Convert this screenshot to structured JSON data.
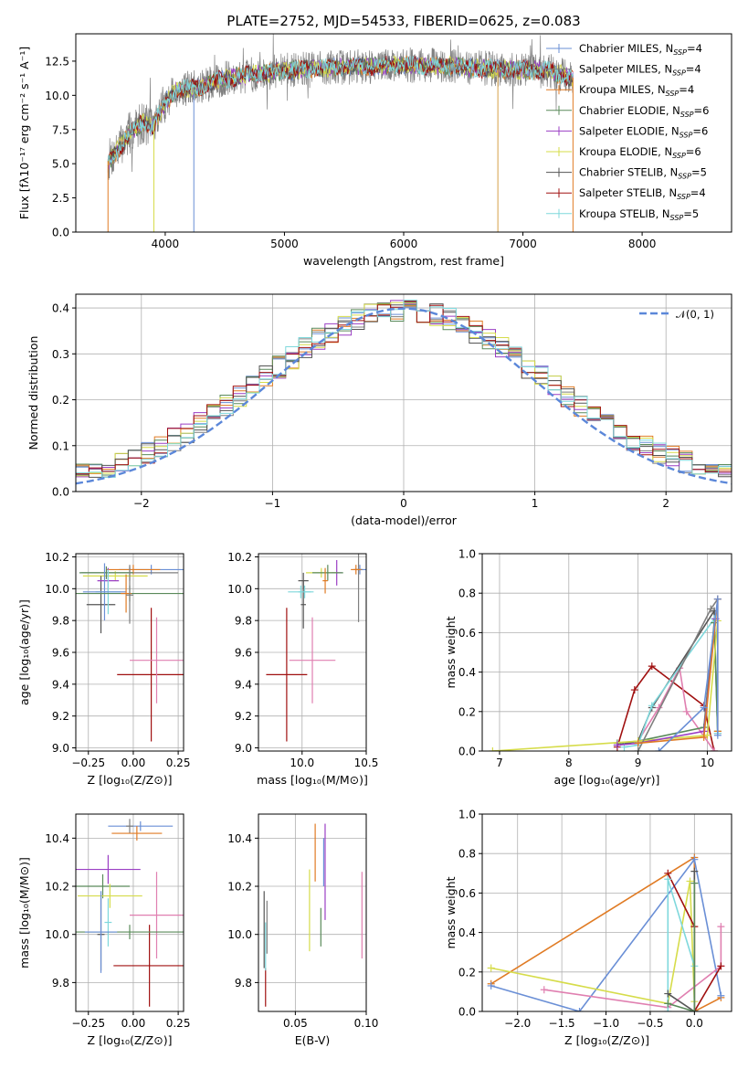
{
  "colors": {
    "Chabrier MILES": "#6a8fd6",
    "Salpeter MILES": "#7f7f7f",
    "Kroupa MILES": "#e07b24",
    "Chabrier ELODIE": "#5a8a5a",
    "Salpeter ELODIE": "#9b3fc4",
    "Kroupa ELODIE": "#d6dc4a",
    "Chabrier STELIB": "#555555",
    "Salpeter STELIB": "#a01010",
    "Kroupa STELIB": "#7fd8dc",
    "extra pink": "#e07fb0",
    "normal curve": "#5b87d9"
  },
  "chart_data": [
    {
      "id": "spectrum",
      "type": "line",
      "title": "PLATE=2752, MJD=54533, FIBERID=0625, z=0.083",
      "xlabel": "wavelength [Angstrom, rest frame]",
      "ylabel": "Flux [fλ10⁻¹⁷ erg cm⁻² s⁻¹ A⁻¹]",
      "xlim": [
        3250,
        8750
      ],
      "ylim": [
        0,
        14.5
      ],
      "xticks": [
        "4000",
        "5000",
        "6000",
        "7000",
        "8000"
      ],
      "yticks": [
        "0.0",
        "2.5",
        "5.0",
        "7.5",
        "10.0",
        "12.5"
      ],
      "continuum": {
        "x": [
          3520,
          3600,
          3700,
          3800,
          3900,
          4000,
          4100,
          4300,
          4500,
          4800,
          5000,
          5300,
          5600,
          6000,
          6300,
          6600,
          6900,
          7200,
          7420
        ],
        "y": [
          5.2,
          6.0,
          7.2,
          8.0,
          7.8,
          9.5,
          10.4,
          10.6,
          11.2,
          11.6,
          11.8,
          12.0,
          12.1,
          12.2,
          12.2,
          12.0,
          11.9,
          11.8,
          11.3
        ]
      },
      "legend": [
        {
          "label": "Chabrier MILES, N",
          "sub": "SSP",
          "tail": "=4"
        },
        {
          "label": "Salpeter MILES, N",
          "sub": "SSP",
          "tail": "=4"
        },
        {
          "label": "Kroupa MILES, N",
          "sub": "SSP",
          "tail": "=4"
        },
        {
          "label": "Chabrier ELODIE, N",
          "sub": "SSP",
          "tail": "=6"
        },
        {
          "label": "Salpeter ELODIE, N",
          "sub": "SSP",
          "tail": "=6"
        },
        {
          "label": "Kroupa ELODIE, N",
          "sub": "SSP",
          "tail": "=6"
        },
        {
          "label": "Chabrier STELIB, N",
          "sub": "SSP",
          "tail": "=5"
        },
        {
          "label": "Salpeter STELIB, N",
          "sub": "SSP",
          "tail": "=4"
        },
        {
          "label": "Kroupa STELIB, N",
          "sub": "SSP",
          "tail": "=5"
        }
      ],
      "legend_placement": "upper-right",
      "grid": false
    },
    {
      "id": "residuals",
      "type": "histogram",
      "xlabel": "(data-model)/error",
      "ylabel": "Normed distribution",
      "xlim": [
        -2.5,
        2.5
      ],
      "ylim": [
        0,
        0.43
      ],
      "xticks": [
        "−2",
        "−1",
        "0",
        "1",
        "2"
      ],
      "yticks": [
        "0.0",
        "0.1",
        "0.2",
        "0.3",
        "0.4"
      ],
      "bin_width": 0.1,
      "legend": "𝒩(0, 1)",
      "legend_placement": "upper-right",
      "grid": true
    },
    {
      "id": "age-vs-Z",
      "type": "errorbar",
      "xlabel": "Z [log₁₀(Z/Z⊙)]",
      "ylabel": "age  [log₁₀(age/yr)]",
      "xlim": [
        -0.32,
        0.28
      ],
      "ylim": [
        8.98,
        10.22
      ],
      "xticks": [
        "−0.25",
        "0.00",
        "0.25"
      ],
      "yticks": [
        "9.0",
        "9.2",
        "9.4",
        "9.6",
        "9.8",
        "10.0",
        "10.2"
      ],
      "grid": true,
      "points": [
        {
          "c": "#a01010",
          "x": 0.1,
          "xe": 0.19,
          "y": 9.46,
          "ye": 0.42
        },
        {
          "c": "#e07fb0",
          "x": 0.13,
          "xe": 0.15,
          "y": 9.55,
          "ye": 0.27
        },
        {
          "c": "#6a8fd6",
          "x": 0.1,
          "xe": 0.18,
          "y": 10.12,
          "ye": 0.03
        },
        {
          "c": "#7f7f7f",
          "x": -0.02,
          "xe": 0.27,
          "y": 10.1,
          "ye": 0.05
        },
        {
          "c": "#e07b24",
          "x": 0.0,
          "xe": 0.15,
          "y": 10.12,
          "ye": 0.03
        },
        {
          "c": "#d6dc4a",
          "x": -0.1,
          "xe": 0.18,
          "y": 10.08,
          "ye": 0.03
        },
        {
          "c": "#5a8a5a",
          "x": -0.15,
          "xe": 0.15,
          "y": 10.1,
          "ye": 0.04
        },
        {
          "c": "#555555",
          "x": -0.18,
          "xe": 0.08,
          "y": 9.9,
          "ye": 0.18
        },
        {
          "c": "#9b3fc4",
          "x": -0.14,
          "xe": 0.06,
          "y": 10.05,
          "ye": 0.08
        },
        {
          "c": "#7fd8dc",
          "x": -0.14,
          "xe": 0.07,
          "y": 9.98,
          "ye": 0.14
        },
        {
          "c": "#6a8fd6",
          "x": -0.16,
          "xe": 0.12,
          "y": 9.98,
          "ye": 0.18
        },
        {
          "c": "#5a8a5a",
          "x": -0.02,
          "xe": 0.3,
          "y": 9.97,
          "ye": 0.05
        },
        {
          "c": "#e07b24",
          "x": -0.04,
          "xe": 0.03,
          "y": 9.97,
          "ye": 0.12
        },
        {
          "c": "#7f7f7f",
          "x": -0.02,
          "xe": 0.02,
          "y": 9.96,
          "ye": 0.18
        }
      ]
    },
    {
      "id": "age-vs-mass",
      "type": "errorbar",
      "xlabel": "mass [log₁₀(M/M⊙)]",
      "ylabel": "",
      "xlim": [
        9.66,
        10.5
      ],
      "ylim": [
        8.98,
        10.22
      ],
      "xticks": [
        "10.0",
        "10.5"
      ],
      "yticks": [
        "9.0",
        "9.2",
        "9.4",
        "9.6",
        "9.8",
        "10.0",
        "10.2"
      ],
      "grid": true,
      "points": [
        {
          "c": "#a01010",
          "x": 9.88,
          "xe": 0.16,
          "y": 9.46,
          "ye": 0.42
        },
        {
          "c": "#e07fb0",
          "x": 10.08,
          "xe": 0.18,
          "y": 9.55,
          "ye": 0.27
        },
        {
          "c": "#6a8fd6",
          "x": 10.45,
          "xe": 0.05,
          "y": 10.12,
          "ye": 0.03
        },
        {
          "c": "#7f7f7f",
          "x": 10.44,
          "xe": 0.03,
          "y": 10.12,
          "ye": 0.33
        },
        {
          "c": "#e07b24",
          "x": 10.42,
          "xe": 0.04,
          "y": 10.12,
          "ye": 0.03
        },
        {
          "c": "#9b3fc4",
          "x": 10.27,
          "xe": 0.04,
          "y": 10.1,
          "ye": 0.08
        },
        {
          "c": "#d6dc4a",
          "x": 10.15,
          "xe": 0.12,
          "y": 10.1,
          "ye": 0.03
        },
        {
          "c": "#5a8a5a",
          "x": 10.2,
          "xe": 0.12,
          "y": 10.1,
          "ye": 0.05
        },
        {
          "c": "#555555",
          "x": 10.01,
          "xe": 0.04,
          "y": 10.05,
          "ye": 0.05
        },
        {
          "c": "#7fd8dc",
          "x": 10.02,
          "xe": 0.05,
          "y": 9.98,
          "ye": 0.04
        },
        {
          "c": "#555555",
          "x": 10.01,
          "xe": 0.02,
          "y": 9.9,
          "ye": 0.15
        },
        {
          "c": "#7fd8dc",
          "x": 9.99,
          "xe": 0.1,
          "y": 9.98,
          "ye": 0.04
        },
        {
          "c": "#e07b24",
          "x": 10.18,
          "xe": 0.02,
          "y": 10.05,
          "ye": 0.08
        }
      ]
    },
    {
      "id": "weight-vs-age",
      "type": "line",
      "xlabel": "age  [log₁₀(age/yr)]",
      "ylabel": "mass weight",
      "xlim": [
        6.75,
        10.35
      ],
      "ylim": [
        0,
        1.0
      ],
      "xticks": [
        "7",
        "8",
        "9",
        "10"
      ],
      "yticks": [
        "0.0",
        "0.2",
        "0.4",
        "0.6",
        "0.8",
        "1.0"
      ],
      "grid": true,
      "series": [
        {
          "c": "#a01010",
          "x": [
            8.7,
            8.95,
            9.2,
            9.95,
            10.1
          ],
          "y": [
            0.02,
            0.31,
            0.43,
            0.23,
            0.0
          ]
        },
        {
          "c": "#e07fb0",
          "x": [
            9.0,
            9.3,
            9.6,
            9.7,
            10.1
          ],
          "y": [
            0.05,
            0.22,
            0.42,
            0.2,
            0.0
          ]
        },
        {
          "c": "#555555",
          "x": [
            8.7,
            9.0,
            9.2,
            10.1,
            10.15
          ],
          "y": [
            0.03,
            0.05,
            0.22,
            0.71,
            0.09
          ]
        },
        {
          "c": "#7fd8dc",
          "x": [
            8.8,
            9.0,
            9.2,
            10.1,
            10.15
          ],
          "y": [
            0.02,
            0.03,
            0.23,
            0.67,
            0.09
          ]
        },
        {
          "c": "#5a8a5a",
          "x": [
            8.7,
            9.0,
            9.95,
            10.1,
            10.15
          ],
          "y": [
            0.04,
            0.05,
            0.12,
            0.65,
            0.1
          ]
        },
        {
          "c": "#d6dc4a",
          "x": [
            6.9,
            9.0,
            10.0,
            10.15
          ],
          "y": [
            0.0,
            0.05,
            0.08,
            0.66
          ]
        },
        {
          "c": "#9b3fc4",
          "x": [
            8.7,
            9.0,
            9.95,
            10.12
          ],
          "y": [
            0.03,
            0.04,
            0.1,
            0.67
          ]
        },
        {
          "c": "#7f7f7f",
          "x": [
            9.0,
            10.05,
            10.15
          ],
          "y": [
            0.0,
            0.72,
            0.77
          ]
        },
        {
          "c": "#e07b24",
          "x": [
            9.0,
            9.95,
            10.15,
            10.15
          ],
          "y": [
            0.04,
            0.07,
            0.77,
            0.1
          ]
        },
        {
          "c": "#6a8fd6",
          "x": [
            9.3,
            9.95,
            10.15,
            10.15
          ],
          "y": [
            0.0,
            0.22,
            0.77,
            0.08
          ]
        }
      ]
    },
    {
      "id": "mass-vs-Z",
      "type": "errorbar",
      "xlabel": "Z [log₁₀(Z/Z⊙)]",
      "ylabel": "mass [log₁₀(M/M⊙)]",
      "xlim": [
        -0.32,
        0.28
      ],
      "ylim": [
        9.68,
        10.5
      ],
      "xticks": [
        "−0.25",
        "0.00",
        "0.25"
      ],
      "yticks": [
        "9.8",
        "10.0",
        "10.2",
        "10.4"
      ],
      "grid": true,
      "points": [
        {
          "c": "#a01010",
          "x": 0.09,
          "xe": 0.2,
          "y": 9.87,
          "ye": 0.17
        },
        {
          "c": "#e07fb0",
          "x": 0.13,
          "xe": 0.15,
          "y": 10.08,
          "ye": 0.18
        },
        {
          "c": "#6a8fd6",
          "x": 0.04,
          "xe": 0.18,
          "y": 10.45,
          "ye": 0.02
        },
        {
          "c": "#7f7f7f",
          "x": -0.02,
          "xe": 0.02,
          "y": 10.45,
          "ye": 0.03
        },
        {
          "c": "#e07b24",
          "x": 0.02,
          "xe": 0.14,
          "y": 10.42,
          "ye": 0.03
        },
        {
          "c": "#9b3fc4",
          "x": -0.14,
          "xe": 0.18,
          "y": 10.27,
          "ye": 0.06
        },
        {
          "c": "#5a8a5a",
          "x": -0.17,
          "xe": 0.15,
          "y": 10.2,
          "ye": 0.05
        },
        {
          "c": "#d6dc4a",
          "x": -0.13,
          "xe": 0.18,
          "y": 10.16,
          "ye": 0.05
        },
        {
          "c": "#555555",
          "x": -0.18,
          "xe": 0.02,
          "y": 10.0,
          "ye": 0.15
        },
        {
          "c": "#7fd8dc",
          "x": -0.14,
          "xe": 0.02,
          "y": 10.05,
          "ye": 0.1
        },
        {
          "c": "#5a8a5a",
          "x": -0.02,
          "xe": 0.3,
          "y": 10.01,
          "ye": 0.03
        },
        {
          "c": "#6a8fd6",
          "x": -0.18,
          "xe": 0.09,
          "y": 10.01,
          "ye": 0.17
        }
      ]
    },
    {
      "id": "mass-vs-ebv",
      "type": "errorbar",
      "xlabel": "E(B-V)",
      "ylabel": "",
      "xlim": [
        0.024,
        0.1
      ],
      "ylim": [
        9.68,
        10.5
      ],
      "xticks": [
        "0.05",
        "0.10"
      ],
      "yticks": [
        "9.8",
        "10.0",
        "10.2",
        "10.4"
      ],
      "grid": true,
      "points": [
        {
          "c": "#555555",
          "x": 0.028,
          "xe": 0,
          "y": 10.02,
          "ye": 0.16
        },
        {
          "c": "#a01010",
          "x": 0.029,
          "xe": 0,
          "y": 9.78,
          "ye": 0.08
        },
        {
          "c": "#7f7f7f",
          "x": 0.03,
          "xe": 0,
          "y": 10.03,
          "ye": 0.11
        },
        {
          "c": "#7fd8dc",
          "x": 0.029,
          "xe": 0,
          "y": 9.95,
          "ye": 0.1
        },
        {
          "c": "#d6dc4a",
          "x": 0.06,
          "xe": 0,
          "y": 10.1,
          "ye": 0.17
        },
        {
          "c": "#e07b24",
          "x": 0.064,
          "xe": 0,
          "y": 10.34,
          "ye": 0.12
        },
        {
          "c": "#5a8a5a",
          "x": 0.068,
          "xe": 0,
          "y": 10.03,
          "ye": 0.08
        },
        {
          "c": "#6a8fd6",
          "x": 0.07,
          "xe": 0,
          "y": 10.3,
          "ye": 0.1
        },
        {
          "c": "#9b3fc4",
          "x": 0.071,
          "xe": 0,
          "y": 10.26,
          "ye": 0.2
        },
        {
          "c": "#e07fb0",
          "x": 0.097,
          "xe": 0,
          "y": 10.08,
          "ye": 0.18
        }
      ]
    },
    {
      "id": "weight-vs-Z",
      "type": "line",
      "xlabel": "Z [log₁₀(Z/Z⊙)]",
      "ylabel": "mass weight",
      "xlim": [
        -2.4,
        0.42
      ],
      "ylim": [
        0,
        1.0
      ],
      "xticks": [
        "−2.0",
        "−1.5",
        "−1.0",
        "−0.5",
        "0.0"
      ],
      "yticks": [
        "0.0",
        "0.2",
        "0.4",
        "0.6",
        "0.8",
        "1.0"
      ],
      "grid": true,
      "series": [
        {
          "c": "#e07b24",
          "x": [
            -2.3,
            -0.0,
            0.0,
            0.3
          ],
          "y": [
            0.14,
            0.78,
            0.0,
            0.07
          ]
        },
        {
          "c": "#6a8fd6",
          "x": [
            -2.3,
            -1.3,
            -0.0,
            0.3
          ],
          "y": [
            0.13,
            0.0,
            0.77,
            0.08
          ]
        },
        {
          "c": "#d6dc4a",
          "x": [
            -2.3,
            -0.3,
            -0.05,
            0.0
          ],
          "y": [
            0.22,
            0.04,
            0.66,
            0.05
          ]
        },
        {
          "c": "#e07fb0",
          "x": [
            -1.7,
            -0.3,
            0.3,
            0.3
          ],
          "y": [
            0.11,
            0.02,
            0.23,
            0.43
          ]
        },
        {
          "c": "#a01010",
          "x": [
            -0.3,
            0.0,
            0.0,
            0.3
          ],
          "y": [
            0.7,
            0.43,
            0.0,
            0.23
          ]
        },
        {
          "c": "#7fd8dc",
          "x": [
            -0.3,
            -0.3,
            0.0,
            0.0
          ],
          "y": [
            0.0,
            0.67,
            0.23,
            0.0
          ]
        },
        {
          "c": "#555555",
          "x": [
            -0.3,
            0.0,
            0.0
          ],
          "y": [
            0.09,
            0.0,
            0.71
          ]
        },
        {
          "c": "#5a8a5a",
          "x": [
            -0.3,
            0.0,
            0.0
          ],
          "y": [
            0.04,
            0.0,
            0.65
          ]
        }
      ]
    }
  ]
}
